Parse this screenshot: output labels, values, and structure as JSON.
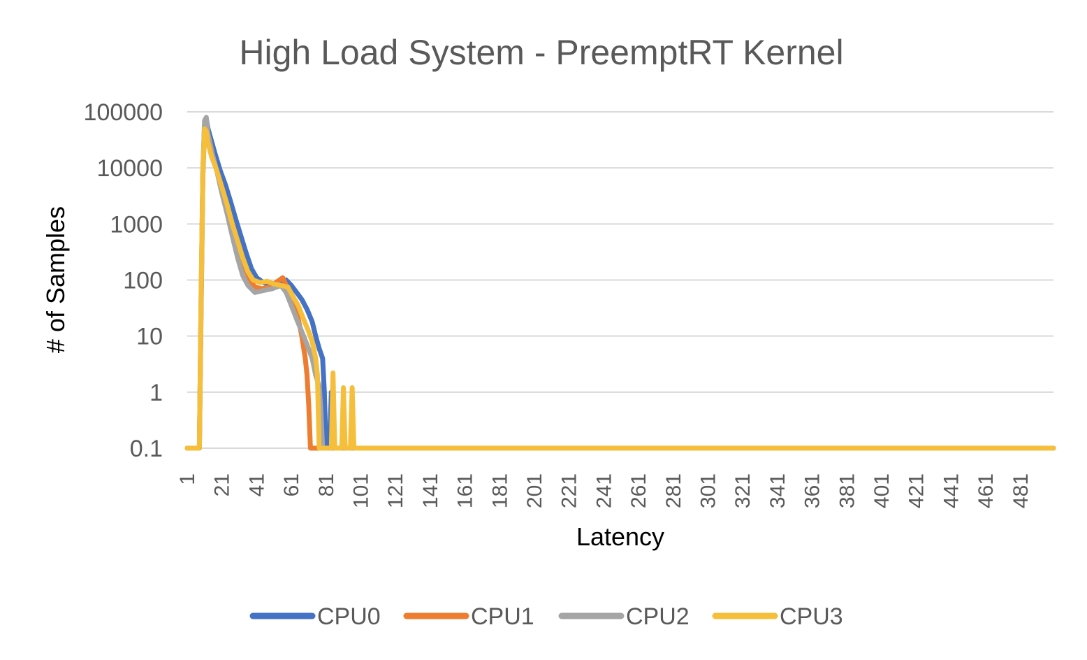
{
  "chart_data": {
    "type": "line",
    "title": "High Load System - PreemptRT Kernel",
    "xlabel": "Latency",
    "ylabel": "# of Samples",
    "y_scale": "log",
    "ylim": [
      0.1,
      100000
    ],
    "y_ticks": [
      "100000",
      "10000",
      "1000",
      "100",
      "10",
      "1",
      "0.1"
    ],
    "x_ticks": [
      "1",
      "21",
      "41",
      "61",
      "81",
      "101",
      "121",
      "141",
      "161",
      "181",
      "201",
      "221",
      "241",
      "261",
      "281",
      "301",
      "321",
      "341",
      "361",
      "381",
      "401",
      "421",
      "441",
      "461",
      "481"
    ],
    "xlim": [
      1,
      500
    ],
    "grid": true,
    "legend_position": "bottom",
    "series": [
      {
        "name": "CPU0",
        "color": "#4472C4",
        "points": [
          [
            1,
            0.1
          ],
          [
            8,
            0.1
          ],
          [
            9,
            50
          ],
          [
            10,
            9000
          ],
          [
            11,
            60000
          ],
          [
            12,
            75000
          ],
          [
            13,
            50000
          ],
          [
            15,
            30000
          ],
          [
            17,
            18000
          ],
          [
            20,
            9000
          ],
          [
            23,
            5000
          ],
          [
            26,
            2500
          ],
          [
            29,
            1200
          ],
          [
            32,
            600
          ],
          [
            35,
            300
          ],
          [
            38,
            160
          ],
          [
            41,
            110
          ],
          [
            45,
            90
          ],
          [
            50,
            80
          ],
          [
            55,
            90
          ],
          [
            58,
            100
          ],
          [
            61,
            80
          ],
          [
            64,
            60
          ],
          [
            67,
            45
          ],
          [
            70,
            30
          ],
          [
            73,
            18
          ],
          [
            75,
            10
          ],
          [
            77,
            6
          ],
          [
            79,
            4
          ],
          [
            80,
            1
          ],
          [
            81,
            0.1
          ],
          [
            83,
            0.1
          ],
          [
            84,
            1
          ],
          [
            85,
            0.1
          ],
          [
            500,
            0.1
          ]
        ]
      },
      {
        "name": "CPU1",
        "color": "#ED7D31",
        "points": [
          [
            1,
            0.1
          ],
          [
            8,
            0.1
          ],
          [
            9,
            30
          ],
          [
            10,
            7000
          ],
          [
            11,
            45000
          ],
          [
            12,
            50000
          ],
          [
            14,
            30000
          ],
          [
            16,
            15000
          ],
          [
            19,
            7000
          ],
          [
            22,
            3500
          ],
          [
            25,
            1500
          ],
          [
            28,
            700
          ],
          [
            31,
            350
          ],
          [
            34,
            180
          ],
          [
            37,
            100
          ],
          [
            40,
            75
          ],
          [
            44,
            70
          ],
          [
            48,
            75
          ],
          [
            52,
            90
          ],
          [
            56,
            110
          ],
          [
            59,
            70
          ],
          [
            62,
            40
          ],
          [
            65,
            20
          ],
          [
            67,
            10
          ],
          [
            69,
            4
          ],
          [
            70,
            2
          ],
          [
            71,
            0.6
          ],
          [
            72,
            0.1
          ],
          [
            500,
            0.1
          ]
        ]
      },
      {
        "name": "CPU2",
        "color": "#A5A5A5",
        "points": [
          [
            1,
            0.1
          ],
          [
            8,
            0.1
          ],
          [
            9,
            40
          ],
          [
            10,
            8000
          ],
          [
            11,
            70000
          ],
          [
            12,
            80000
          ],
          [
            13,
            40000
          ],
          [
            15,
            20000
          ],
          [
            18,
            9000
          ],
          [
            21,
            3500
          ],
          [
            24,
            1500
          ],
          [
            27,
            600
          ],
          [
            30,
            250
          ],
          [
            33,
            120
          ],
          [
            36,
            80
          ],
          [
            40,
            60
          ],
          [
            45,
            65
          ],
          [
            50,
            70
          ],
          [
            55,
            80
          ],
          [
            58,
            60
          ],
          [
            61,
            35
          ],
          [
            64,
            20
          ],
          [
            67,
            12
          ],
          [
            70,
            7
          ],
          [
            73,
            4
          ],
          [
            75,
            2
          ],
          [
            77,
            1.3
          ],
          [
            78,
            0.5
          ],
          [
            79,
            0.1
          ],
          [
            500,
            0.1
          ]
        ]
      },
      {
        "name": "CPU3",
        "color": "#F5BF3C",
        "points": [
          [
            1,
            0.1
          ],
          [
            8,
            0.1
          ],
          [
            9,
            60
          ],
          [
            10,
            9000
          ],
          [
            11,
            50000
          ],
          [
            12,
            45000
          ],
          [
            13,
            28000
          ],
          [
            15,
            16000
          ],
          [
            18,
            9000
          ],
          [
            21,
            4500
          ],
          [
            24,
            2200
          ],
          [
            27,
            1000
          ],
          [
            30,
            500
          ],
          [
            33,
            250
          ],
          [
            36,
            140
          ],
          [
            39,
            100
          ],
          [
            43,
            90
          ],
          [
            47,
            95
          ],
          [
            51,
            85
          ],
          [
            55,
            80
          ],
          [
            59,
            75
          ],
          [
            62,
            50
          ],
          [
            65,
            35
          ],
          [
            68,
            20
          ],
          [
            71,
            12
          ],
          [
            73,
            8
          ],
          [
            75,
            4
          ],
          [
            76,
            2
          ],
          [
            77,
            0.1
          ],
          [
            84,
            0.1
          ],
          [
            85,
            2.2
          ],
          [
            86,
            0.1
          ],
          [
            90,
            0.1
          ],
          [
            91,
            1.2
          ],
          [
            92,
            0.1
          ],
          [
            95,
            0.1
          ],
          [
            96,
            1.2
          ],
          [
            97,
            0.1
          ],
          [
            500,
            0.1
          ]
        ]
      }
    ]
  }
}
